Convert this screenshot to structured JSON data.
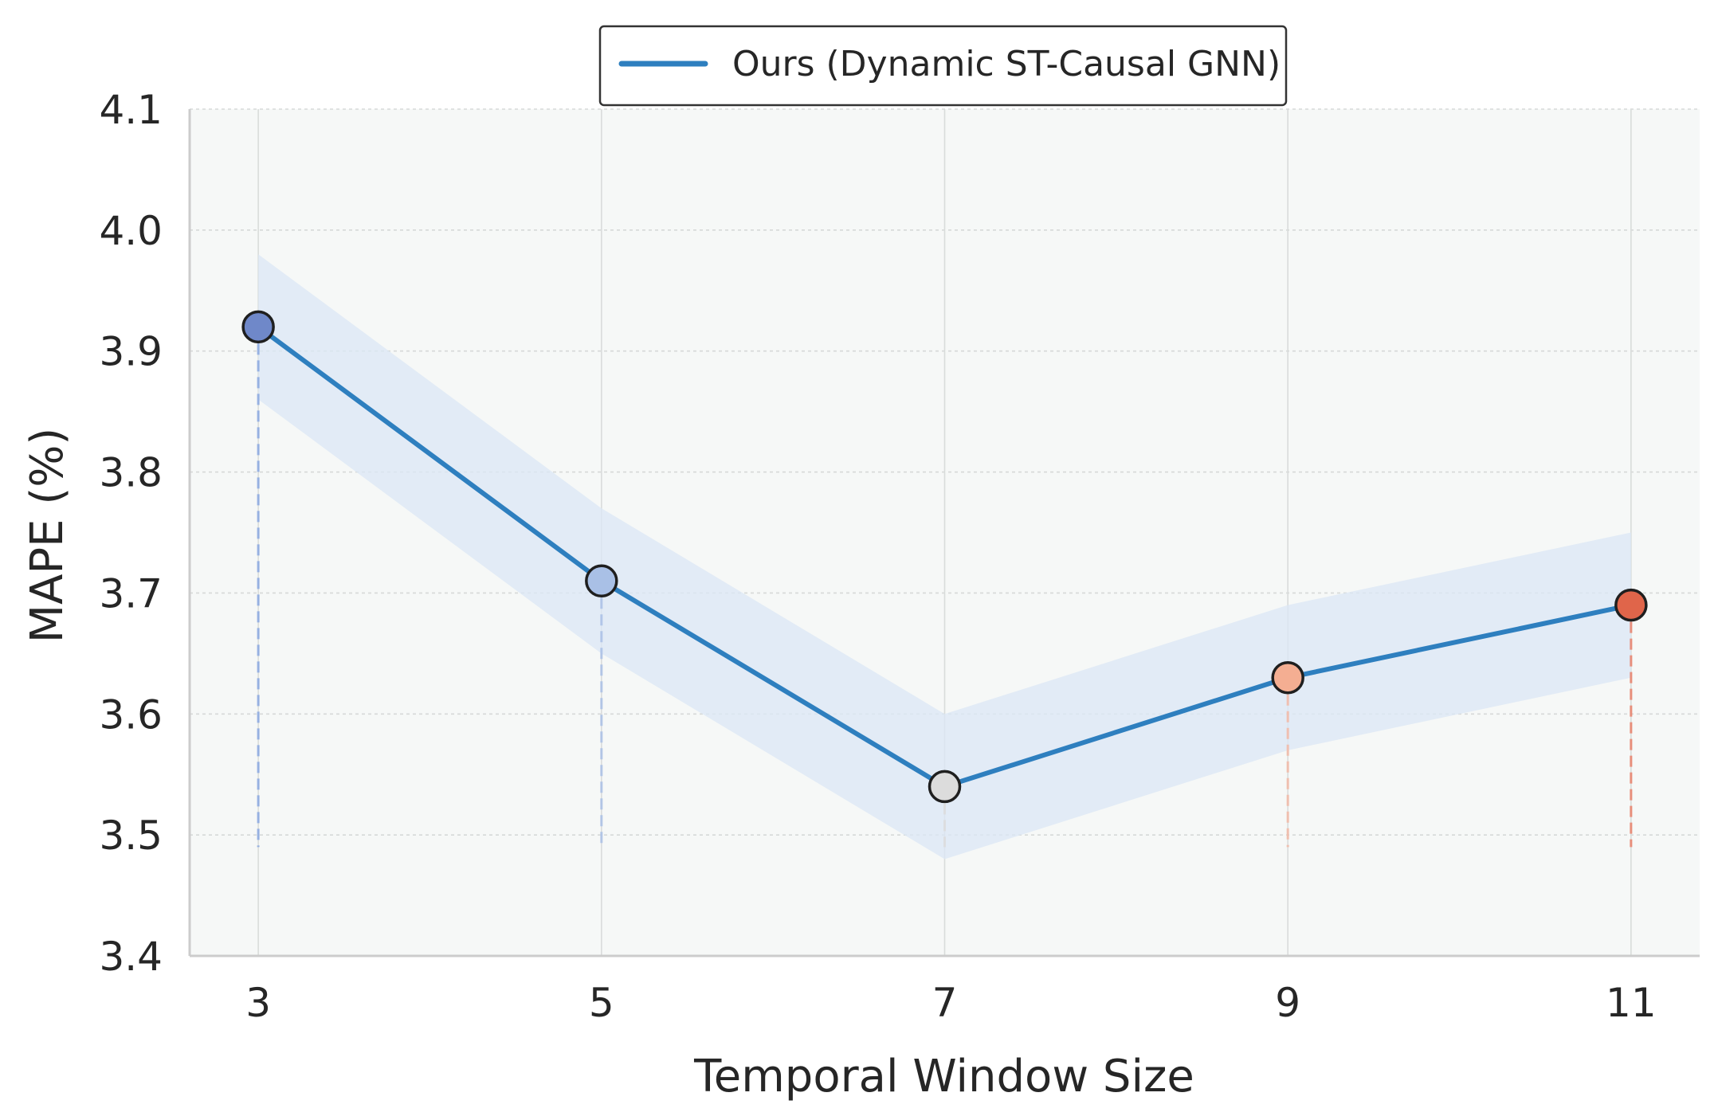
{
  "chart_data": {
    "type": "line",
    "x": [
      3,
      5,
      7,
      9,
      11
    ],
    "series": [
      {
        "name": "Ours (Dynamic ST-Causal GNN)",
        "values": [
          3.92,
          3.71,
          3.54,
          3.63,
          3.69
        ],
        "band_lower": [
          3.86,
          3.65,
          3.48,
          3.57,
          3.63
        ],
        "band_upper": [
          3.98,
          3.77,
          3.6,
          3.69,
          3.75
        ],
        "color": "#2e7fbf",
        "band_color": "#dbe7f5"
      }
    ],
    "point_colors": [
      "#6f88c9",
      "#a9c0e6",
      "#dcdcdc",
      "#f4ae92",
      "#e0654a"
    ],
    "stem_colors": [
      "#8aa8e0",
      "#a9c0e6",
      "#dcdcdc",
      "#f2b8a6",
      "#e8806a"
    ],
    "stem_base": 3.49,
    "xlabel": "Temporal Window Size",
    "ylabel": "MAPE (%)",
    "xticks": [
      "3",
      "5",
      "7",
      "9",
      "11"
    ],
    "yticks": [
      "3.4",
      "3.5",
      "3.6",
      "3.7",
      "3.8",
      "3.9",
      "4.0",
      "4.1"
    ],
    "ylim": [
      3.4,
      4.1
    ],
    "xlim": [
      2.6,
      11.4
    ],
    "grid": true,
    "legend_position": "top-center",
    "background_color": "#f6f8f7"
  }
}
